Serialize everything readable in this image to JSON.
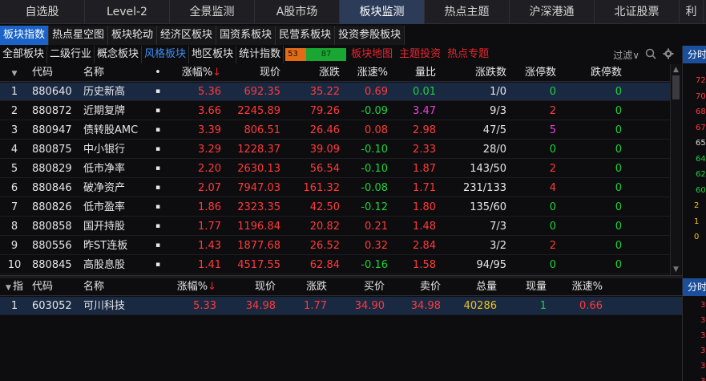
{
  "top_tabs": [
    "自选股",
    "Level-2",
    "全景监测",
    "A股市场",
    "板块监测",
    "热点主题",
    "沪深港通",
    "北证股票",
    "利"
  ],
  "top_active": 4,
  "sub_tabs": [
    "板块指数",
    "热点星空图",
    "板块轮动",
    "经济区板块",
    "国资系板块",
    "民营系板块",
    "投资参股板块"
  ],
  "sub_active": 0,
  "filters": [
    "全部板块",
    "二级行业",
    "概念板块",
    "风格板块",
    "地区板块",
    "统计指数"
  ],
  "filter_active": 3,
  "mini_bar": {
    "red": "53",
    "green": "87"
  },
  "red_links": [
    "板块地图",
    "主题投资",
    "热点专题"
  ],
  "filter_dropdown": "过滤∨",
  "colors": {
    "up": "#ff3a3a",
    "down": "#1fd13b",
    "accent": "#1b63c6"
  },
  "upper_table": {
    "headers": [
      "",
      "代码",
      "名称",
      "•",
      "涨幅%",
      "现价",
      "涨跌",
      "涨速%",
      "量比",
      "涨跌数",
      "涨停数",
      "跌停数"
    ],
    "sort_arrow": "↓",
    "rows": [
      [
        "1",
        "880640",
        "历史新高",
        "5.36",
        "692.35",
        "35.22",
        "0.69",
        "0.01",
        "1/0",
        "0",
        "0"
      ],
      [
        "2",
        "880872",
        "近期复牌",
        "3.66",
        "2245.89",
        "79.26",
        "-0.09",
        "3.47",
        "9/3",
        "2",
        "0"
      ],
      [
        "3",
        "880947",
        "债转股AMC",
        "3.39",
        "806.51",
        "26.46",
        "0.08",
        "2.98",
        "47/5",
        "5",
        "0"
      ],
      [
        "4",
        "880875",
        "中小银行",
        "3.29",
        "1228.37",
        "39.09",
        "-0.10",
        "2.33",
        "28/0",
        "0",
        "0"
      ],
      [
        "5",
        "880829",
        "低市净率",
        "2.20",
        "2630.13",
        "56.54",
        "-0.10",
        "1.87",
        "143/50",
        "2",
        "0"
      ],
      [
        "6",
        "880846",
        "破净资产",
        "2.07",
        "7947.03",
        "161.32",
        "-0.08",
        "1.71",
        "231/133",
        "4",
        "0"
      ],
      [
        "7",
        "880826",
        "低市盈率",
        "1.86",
        "2323.35",
        "42.50",
        "-0.12",
        "1.80",
        "135/60",
        "0",
        "0"
      ],
      [
        "8",
        "880858",
        "国开持股",
        "1.77",
        "1196.84",
        "20.82",
        "0.21",
        "1.48",
        "7/3",
        "0",
        "0"
      ],
      [
        "9",
        "880556",
        "昨ST连板",
        "1.43",
        "1877.68",
        "26.52",
        "0.32",
        "2.84",
        "3/2",
        "2",
        "0"
      ],
      [
        "10",
        "880845",
        "高股息股",
        "1.41",
        "4517.55",
        "62.84",
        "-0.16",
        "1.58",
        "94/95",
        "0",
        "0"
      ]
    ]
  },
  "lower_table": {
    "headers": [
      "指",
      "代码",
      "名称",
      "涨幅%",
      "现价",
      "涨跌",
      "买价",
      "卖价",
      "总量",
      "现量",
      "涨速%"
    ],
    "sort_arrow": "↓",
    "rows": [
      [
        "1",
        "603052",
        "可川科技",
        "5.33",
        "34.98",
        "1.77",
        "34.90",
        "34.98",
        "40286",
        "1",
        "0.66"
      ]
    ]
  },
  "right_panel": {
    "tab_top": "分时",
    "tab_bottom": "分时",
    "numbers": [
      "72",
      "70",
      "68",
      "67",
      "65",
      "64",
      "62",
      "60",
      "2",
      "1",
      "0"
    ],
    "bottom_numbers": [
      "3",
      "3",
      "3",
      "3",
      "3",
      "3"
    ]
  }
}
